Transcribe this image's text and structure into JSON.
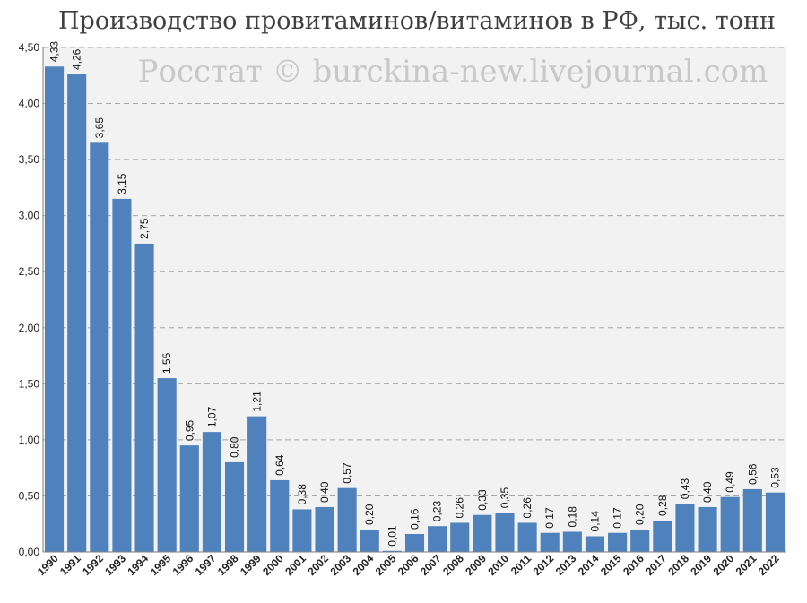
{
  "title": "Производство провитаминов/витаминов в РФ, тыс. тонн",
  "watermark": "Росстат © burckina-new.livejournal.com",
  "colors": {
    "bar": "#4f81bd",
    "plot_background": "#f2f2f2",
    "grid": "#a6a6a6"
  },
  "chart_data": {
    "type": "bar",
    "title": "Производство провитаминов/витаминов в РФ, тыс. тонн",
    "xlabel": "",
    "ylabel": "",
    "ylim": [
      0,
      4.5
    ],
    "grid": true,
    "grid_style": "dashed",
    "legend": "none",
    "y_ticks": [
      "0,00",
      "0,50",
      "1,00",
      "1,50",
      "2,00",
      "2,50",
      "3,00",
      "3,50",
      "4,00",
      "4,50"
    ],
    "y_tick_values": [
      0,
      0.5,
      1,
      1.5,
      2,
      2.5,
      3,
      3.5,
      4,
      4.5
    ],
    "categories": [
      "1990",
      "1991",
      "1992",
      "1993",
      "1994",
      "1995",
      "1996",
      "1997",
      "1998",
      "1999",
      "2000",
      "2001",
      "2002",
      "2003",
      "2004",
      "2005",
      "2006",
      "2007",
      "2008",
      "2009",
      "2010",
      "2011",
      "2012",
      "2013",
      "2014",
      "2015",
      "2016",
      "2017",
      "2018",
      "2019",
      "2020",
      "2021",
      "2022"
    ],
    "values": [
      4.33,
      4.26,
      3.65,
      3.15,
      2.75,
      1.55,
      0.95,
      1.07,
      0.8,
      1.21,
      0.64,
      0.38,
      0.4,
      0.57,
      0.2,
      0.01,
      0.16,
      0.23,
      0.26,
      0.33,
      0.35,
      0.26,
      0.17,
      0.18,
      0.14,
      0.17,
      0.2,
      0.28,
      0.43,
      0.4,
      0.49,
      0.56,
      0.53
    ],
    "data_labels": [
      "4,33",
      "4,26",
      "3,65",
      "3,15",
      "2,75",
      "1,55",
      "0,95",
      "1,07",
      "0,80",
      "1,21",
      "0,64",
      "0,38",
      "0,40",
      "0,57",
      "0,20",
      "0,01",
      "0,16",
      "0,23",
      "0,26",
      "0,33",
      "0,35",
      "0,26",
      "0,17",
      "0,18",
      "0,14",
      "0,17",
      "0,20",
      "0,28",
      "0,43",
      "0,40",
      "0,49",
      "0,56",
      "0,53"
    ]
  }
}
